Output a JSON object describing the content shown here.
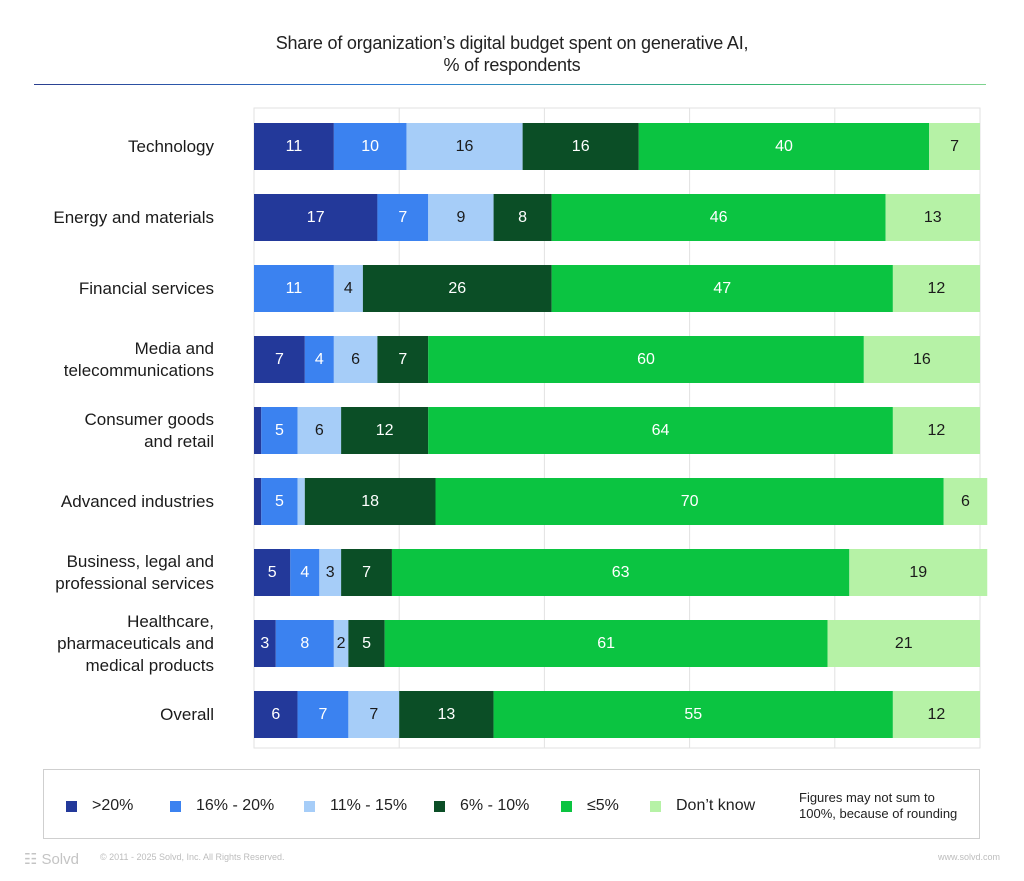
{
  "chart_data": {
    "type": "bar",
    "orientation": "horizontal",
    "stacked": true,
    "title": "Share of organization’s digital budget spent on generative AI,",
    "subtitle": "% of respondents",
    "categories": [
      [
        "Technology"
      ],
      [
        "Energy and materials"
      ],
      [
        "Financial services"
      ],
      [
        "Media and",
        "telecommunications"
      ],
      [
        "Consumer goods",
        "and retail"
      ],
      [
        "Advanced industries"
      ],
      [
        "Business, legal and",
        "professional services"
      ],
      [
        "Healthcare,",
        "pharmaceuticals and",
        "medical products"
      ],
      [
        "Overall"
      ]
    ],
    "series": [
      {
        "name": ">20%",
        "color": "#23399a",
        "text_color": "#ffffff",
        "values": [
          11,
          17,
          0,
          7,
          1,
          1,
          5,
          3,
          6
        ]
      },
      {
        "name": "16% - 20%",
        "color": "#3b82f0",
        "text_color": "#ffffff",
        "values": [
          10,
          7,
          11,
          4,
          5,
          5,
          4,
          8,
          7
        ]
      },
      {
        "name": "11% - 15%",
        "color": "#a6cdf8",
        "text_color": "#1b1b1b",
        "values": [
          16,
          9,
          4,
          6,
          6,
          1,
          3,
          2,
          7
        ]
      },
      {
        "name": "6% - 10%",
        "color": "#0b4e26",
        "text_color": "#ffffff",
        "values": [
          16,
          8,
          26,
          7,
          12,
          18,
          7,
          5,
          13
        ]
      },
      {
        "name": "≤5%",
        "color": "#0bc441",
        "text_color": "#ffffff",
        "values": [
          40,
          46,
          47,
          60,
          64,
          70,
          63,
          61,
          55
        ]
      },
      {
        "name": "Don’t know",
        "color": "#b6f2a6",
        "text_color": "#1b1b1b",
        "values": [
          7,
          13,
          12,
          16,
          12,
          6,
          19,
          21,
          12
        ]
      }
    ],
    "value_labels_hidden_below": 2,
    "xlim": [
      0,
      100
    ],
    "grid": true,
    "legend_position": "bottom",
    "legend_note": [
      "Figures may not sum to",
      "100%, because of rounding"
    ]
  },
  "footer": {
    "brand": "Solvd",
    "copyright": "© 2011 - 2025 Solvd, Inc. All Rights Reserved.",
    "url": "www.solvd.com"
  }
}
